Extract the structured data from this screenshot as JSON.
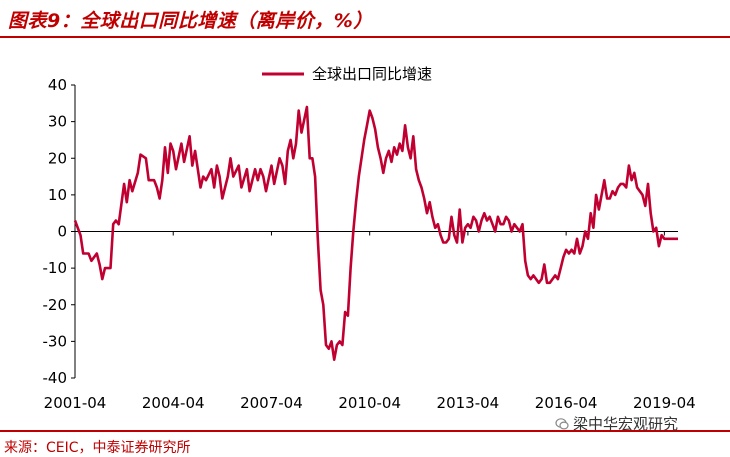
{
  "header": {
    "title": "图表9：全球出口同比增速（离岸价，%）"
  },
  "footer": {
    "source": "来源：CEIC，中泰证券研究所",
    "watermark": "梁中华宏观研究"
  },
  "chart_data": {
    "type": "line",
    "title": "",
    "xlabel": "",
    "ylabel": "",
    "ylim": [
      -40,
      40
    ],
    "yticks": [
      40,
      30,
      20,
      10,
      0,
      -10,
      -20,
      -30,
      -40
    ],
    "x_tick_labels": [
      "2001-04",
      "2004-04",
      "2007-04",
      "2010-04",
      "2013-04",
      "2016-04",
      "2019-04"
    ],
    "x_range": [
      "2001-04",
      "2019-09"
    ],
    "legend_position": "top-center",
    "grid": false,
    "color": "#c00031",
    "series": [
      {
        "name": "全球出口同比增速",
        "points": [
          [
            "2001-04",
            3
          ],
          [
            "2001-06",
            -1
          ],
          [
            "2001-07",
            -6
          ],
          [
            "2001-09",
            -6
          ],
          [
            "2001-10",
            -8
          ],
          [
            "2001-12",
            -6
          ],
          [
            "2002-01",
            -9
          ],
          [
            "2002-02",
            -13
          ],
          [
            "2002-03",
            -10
          ],
          [
            "2002-05",
            -10
          ],
          [
            "2002-06",
            2
          ],
          [
            "2002-07",
            3
          ],
          [
            "2002-08",
            2
          ],
          [
            "2002-10",
            13
          ],
          [
            "2002-11",
            8
          ],
          [
            "2002-12",
            14
          ],
          [
            "2003-01",
            11
          ],
          [
            "2003-03",
            16
          ],
          [
            "2003-04",
            21
          ],
          [
            "2003-06",
            20
          ],
          [
            "2003-07",
            14
          ],
          [
            "2003-09",
            14
          ],
          [
            "2003-10",
            12
          ],
          [
            "2003-11",
            9
          ],
          [
            "2003-12",
            14
          ],
          [
            "2004-01",
            23
          ],
          [
            "2004-02",
            16
          ],
          [
            "2004-03",
            24
          ],
          [
            "2004-04",
            22
          ],
          [
            "2004-05",
            17
          ],
          [
            "2004-07",
            24
          ],
          [
            "2004-08",
            19
          ],
          [
            "2004-10",
            26
          ],
          [
            "2004-11",
            18
          ],
          [
            "2004-12",
            22
          ],
          [
            "2005-01",
            17
          ],
          [
            "2005-02",
            12
          ],
          [
            "2005-03",
            15
          ],
          [
            "2005-04",
            14
          ],
          [
            "2005-06",
            17
          ],
          [
            "2005-07",
            12
          ],
          [
            "2005-08",
            18
          ],
          [
            "2005-09",
            15
          ],
          [
            "2005-10",
            9
          ],
          [
            "2005-12",
            15
          ],
          [
            "2006-01",
            20
          ],
          [
            "2006-02",
            15
          ],
          [
            "2006-04",
            18
          ],
          [
            "2006-05",
            12
          ],
          [
            "2006-07",
            17
          ],
          [
            "2006-08",
            11
          ],
          [
            "2006-10",
            17
          ],
          [
            "2006-11",
            14
          ],
          [
            "2006-12",
            17
          ],
          [
            "2007-01",
            15
          ],
          [
            "2007-02",
            11
          ],
          [
            "2007-04",
            18
          ],
          [
            "2007-05",
            13
          ],
          [
            "2007-07",
            20
          ],
          [
            "2007-08",
            18
          ],
          [
            "2007-09",
            13
          ],
          [
            "2007-10",
            22
          ],
          [
            "2007-11",
            25
          ],
          [
            "2007-12",
            20
          ],
          [
            "2008-01",
            24
          ],
          [
            "2008-02",
            33
          ],
          [
            "2008-03",
            27
          ],
          [
            "2008-05",
            34
          ],
          [
            "2008-06",
            20
          ],
          [
            "2008-07",
            20
          ],
          [
            "2008-08",
            15
          ],
          [
            "2008-09",
            -2
          ],
          [
            "2008-10",
            -16
          ],
          [
            "2008-11",
            -20
          ],
          [
            "2008-12",
            -31
          ],
          [
            "2009-01",
            -32
          ],
          [
            "2009-02",
            -30
          ],
          [
            "2009-03",
            -35
          ],
          [
            "2009-04",
            -31
          ],
          [
            "2009-05",
            -30
          ],
          [
            "2009-06",
            -31
          ],
          [
            "2009-07",
            -22
          ],
          [
            "2009-08",
            -23
          ],
          [
            "2009-09",
            -10
          ],
          [
            "2009-10",
            0
          ],
          [
            "2009-11",
            8
          ],
          [
            "2009-12",
            15
          ],
          [
            "2010-01",
            20
          ],
          [
            "2010-02",
            25
          ],
          [
            "2010-03",
            29
          ],
          [
            "2010-04",
            33
          ],
          [
            "2010-05",
            31
          ],
          [
            "2010-06",
            28
          ],
          [
            "2010-07",
            23
          ],
          [
            "2010-08",
            20
          ],
          [
            "2010-09",
            16
          ],
          [
            "2010-10",
            20
          ],
          [
            "2010-11",
            22
          ],
          [
            "2010-12",
            19
          ],
          [
            "2011-01",
            23
          ],
          [
            "2011-02",
            21
          ],
          [
            "2011-03",
            24
          ],
          [
            "2011-04",
            22
          ],
          [
            "2011-05",
            29
          ],
          [
            "2011-06",
            23
          ],
          [
            "2011-07",
            20
          ],
          [
            "2011-08",
            26
          ],
          [
            "2011-09",
            17
          ],
          [
            "2011-10",
            14
          ],
          [
            "2011-11",
            12
          ],
          [
            "2011-12",
            9
          ],
          [
            "2012-01",
            5
          ],
          [
            "2012-02",
            8
          ],
          [
            "2012-03",
            4
          ],
          [
            "2012-04",
            1
          ],
          [
            "2012-05",
            2
          ],
          [
            "2012-06",
            -1
          ],
          [
            "2012-07",
            -3
          ],
          [
            "2012-08",
            -3
          ],
          [
            "2012-09",
            -2
          ],
          [
            "2012-10",
            4
          ],
          [
            "2012-11",
            -1
          ],
          [
            "2012-12",
            -3
          ],
          [
            "2013-01",
            6
          ],
          [
            "2013-02",
            -3
          ],
          [
            "2013-03",
            1
          ],
          [
            "2013-04",
            2
          ],
          [
            "2013-05",
            1
          ],
          [
            "2013-06",
            4
          ],
          [
            "2013-07",
            3
          ],
          [
            "2013-08",
            0
          ],
          [
            "2013-09",
            3
          ],
          [
            "2013-10",
            5
          ],
          [
            "2013-11",
            3
          ],
          [
            "2013-12",
            4
          ],
          [
            "2014-01",
            2
          ],
          [
            "2014-02",
            0
          ],
          [
            "2014-03",
            4
          ],
          [
            "2014-04",
            2
          ],
          [
            "2014-05",
            2
          ],
          [
            "2014-06",
            4
          ],
          [
            "2014-07",
            3
          ],
          [
            "2014-08",
            0
          ],
          [
            "2014-09",
            2
          ],
          [
            "2014-10",
            1
          ],
          [
            "2014-11",
            0
          ],
          [
            "2014-12",
            2
          ],
          [
            "2015-01",
            -8
          ],
          [
            "2015-02",
            -12
          ],
          [
            "2015-03",
            -13
          ],
          [
            "2015-04",
            -12
          ],
          [
            "2015-05",
            -13
          ],
          [
            "2015-06",
            -14
          ],
          [
            "2015-07",
            -13
          ],
          [
            "2015-08",
            -9
          ],
          [
            "2015-09",
            -14
          ],
          [
            "2015-10",
            -14
          ],
          [
            "2015-11",
            -13
          ],
          [
            "2015-12",
            -12
          ],
          [
            "2016-01",
            -13
          ],
          [
            "2016-02",
            -10
          ],
          [
            "2016-03",
            -7
          ],
          [
            "2016-04",
            -5
          ],
          [
            "2016-05",
            -6
          ],
          [
            "2016-06",
            -5
          ],
          [
            "2016-07",
            -6
          ],
          [
            "2016-08",
            -2
          ],
          [
            "2016-09",
            -6
          ],
          [
            "2016-10",
            -4
          ],
          [
            "2016-11",
            0
          ],
          [
            "2016-12",
            -2
          ],
          [
            "2017-01",
            5
          ],
          [
            "2017-02",
            1
          ],
          [
            "2017-03",
            10
          ],
          [
            "2017-04",
            6
          ],
          [
            "2017-05",
            10
          ],
          [
            "2017-06",
            14
          ],
          [
            "2017-07",
            9
          ],
          [
            "2017-08",
            9
          ],
          [
            "2017-09",
            11
          ],
          [
            "2017-10",
            10
          ],
          [
            "2017-11",
            12
          ],
          [
            "2017-12",
            13
          ],
          [
            "2018-01",
            13
          ],
          [
            "2018-02",
            12
          ],
          [
            "2018-03",
            18
          ],
          [
            "2018-04",
            14
          ],
          [
            "2018-05",
            16
          ],
          [
            "2018-06",
            12
          ],
          [
            "2018-07",
            11
          ],
          [
            "2018-08",
            10
          ],
          [
            "2018-09",
            7
          ],
          [
            "2018-10",
            13
          ],
          [
            "2018-11",
            5
          ],
          [
            "2018-12",
            0
          ],
          [
            "2019-01",
            1
          ],
          [
            "2019-02",
            -4
          ],
          [
            "2019-03",
            -1
          ],
          [
            "2019-04",
            -2
          ],
          [
            "2019-05",
            -2
          ],
          [
            "2019-06",
            -2
          ],
          [
            "2019-07",
            -2
          ],
          [
            "2019-08",
            -2
          ],
          [
            "2019-09",
            -2
          ]
        ]
      }
    ]
  }
}
